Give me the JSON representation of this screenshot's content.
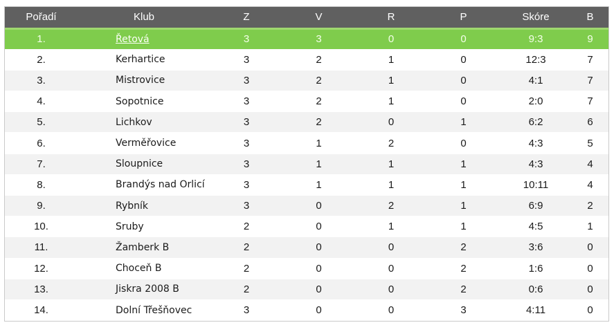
{
  "headers": {
    "rank": "Pořadí",
    "club": "Klub",
    "z": "Z",
    "v": "V",
    "r": "R",
    "p": "P",
    "score": "Skóre",
    "b": "B"
  },
  "colors": {
    "header_bg": "#606060",
    "highlight_row": "#7fcc4c",
    "alt_row": "#f2f2f2"
  },
  "rows": [
    {
      "rank": "1.",
      "club": "Řetová",
      "z": "3",
      "v": "3",
      "r": "0",
      "p": "0",
      "score": "9:3",
      "b": "9"
    },
    {
      "rank": "2.",
      "club": "Kerhartice",
      "z": "3",
      "v": "2",
      "r": "1",
      "p": "0",
      "score": "12:3",
      "b": "7"
    },
    {
      "rank": "3.",
      "club": "Mistrovice",
      "z": "3",
      "v": "2",
      "r": "1",
      "p": "0",
      "score": "4:1",
      "b": "7"
    },
    {
      "rank": "4.",
      "club": "Sopotnice",
      "z": "3",
      "v": "2",
      "r": "1",
      "p": "0",
      "score": "2:0",
      "b": "7"
    },
    {
      "rank": "5.",
      "club": "Lichkov",
      "z": "3",
      "v": "2",
      "r": "0",
      "p": "1",
      "score": "6:2",
      "b": "6"
    },
    {
      "rank": "6.",
      "club": "Verměřovice",
      "z": "3",
      "v": "1",
      "r": "2",
      "p": "0",
      "score": "4:3",
      "b": "5"
    },
    {
      "rank": "7.",
      "club": "Sloupnice",
      "z": "3",
      "v": "1",
      "r": "1",
      "p": "1",
      "score": "4:3",
      "b": "4"
    },
    {
      "rank": "8.",
      "club": "Brandýs nad Orlicí",
      "z": "3",
      "v": "1",
      "r": "1",
      "p": "1",
      "score": "10:11",
      "b": "4"
    },
    {
      "rank": "9.",
      "club": "Rybník",
      "z": "3",
      "v": "0",
      "r": "2",
      "p": "1",
      "score": "6:9",
      "b": "2"
    },
    {
      "rank": "10.",
      "club": "Sruby",
      "z": "2",
      "v": "0",
      "r": "1",
      "p": "1",
      "score": "4:5",
      "b": "1"
    },
    {
      "rank": "11.",
      "club": "Žamberk B",
      "z": "2",
      "v": "0",
      "r": "0",
      "p": "2",
      "score": "3:6",
      "b": "0"
    },
    {
      "rank": "12.",
      "club": "Choceň B",
      "z": "2",
      "v": "0",
      "r": "0",
      "p": "2",
      "score": "1:6",
      "b": "0"
    },
    {
      "rank": "13.",
      "club": "Jiskra 2008 B",
      "z": "2",
      "v": "0",
      "r": "0",
      "p": "2",
      "score": "0:6",
      "b": "0"
    },
    {
      "rank": "14.",
      "club": "Dolní Třešňovec",
      "z": "3",
      "v": "0",
      "r": "0",
      "p": "3",
      "score": "4:11",
      "b": "0"
    }
  ]
}
